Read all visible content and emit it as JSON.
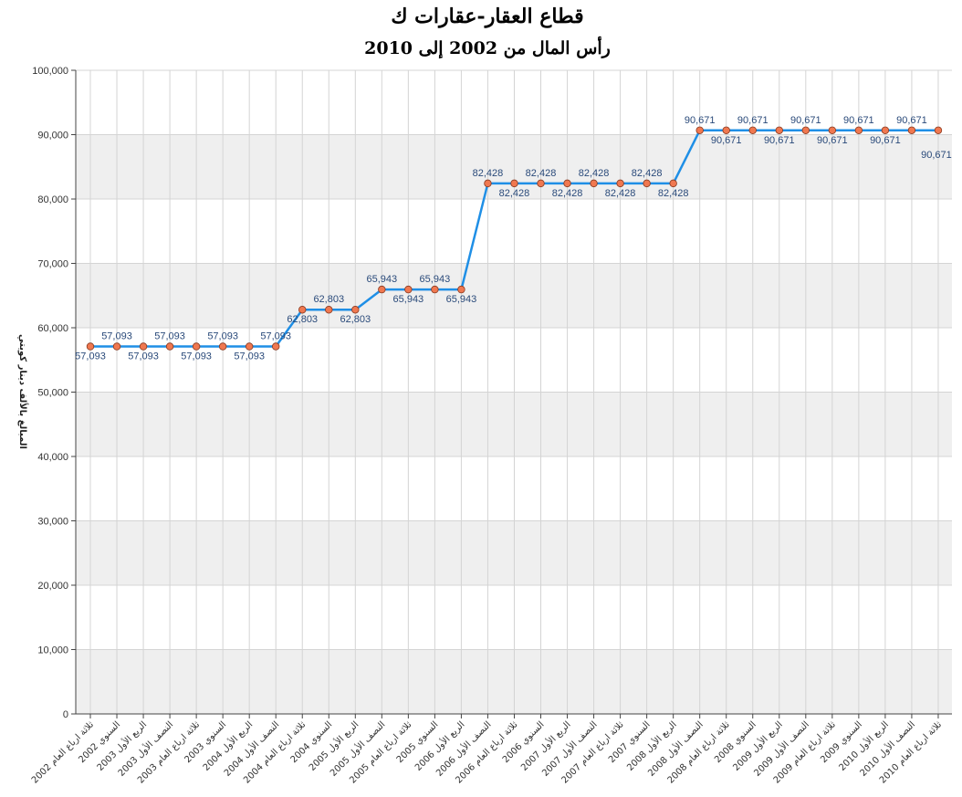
{
  "chart_data": {
    "type": "line",
    "title": "قطاع العقار-عقارات ك",
    "subtitle": "رأس المال من 2002 إلى 2010",
    "xlabel": "",
    "ylabel": "المبالغ بالألف دينار كويتي",
    "ylim": [
      0,
      100000
    ],
    "yticks": [
      "0",
      "10,000",
      "20,000",
      "30,000",
      "40,000",
      "50,000",
      "60,000",
      "70,000",
      "80,000",
      "90,000",
      "100,000"
    ],
    "grid": true,
    "legend": "none",
    "line_color": "#1f8fe6",
    "marker_color": "#f07850",
    "categories": [
      "ثلاثة ارباع العام 2002",
      "السنوي 2002",
      "الربع الأول 2003",
      "النصف الأول 2003",
      "ثلاثة ارباع العام 2003",
      "السنوي 2003",
      "الربع الأول 2004",
      "النصف الأول 2004",
      "ثلاثة ارباع العام 2004",
      "السنوي 2004",
      "الربع الأول 2005",
      "النصف الأول 2005",
      "ثلاثة ارباع العام 2005",
      "السنوي 2005",
      "الربع الأول 2006",
      "النصف الأول 2006",
      "ثلاثة ارباع العام 2006",
      "السنوي 2006",
      "الربع الأول 2007",
      "النصف الأول 2007",
      "ثلاثة ارباع العام 2007",
      "السنوي 2007",
      "الربع الأول 2008",
      "النصف الأول 2008",
      "ثلاثة ارباع العام 2008",
      "السنوي 2008",
      "الربع الأول 2009",
      "النصف الأول 2009",
      "ثلاثة ارباع العام 2009",
      "السنوي 2009",
      "الربع الأول 2010",
      "النصف الأول 2010",
      "ثلاثة ارباع العام 2010"
    ],
    "values": [
      57093,
      57093,
      57093,
      57093,
      57093,
      57093,
      57093,
      57093,
      62803,
      62803,
      62803,
      65943,
      65943,
      65943,
      65943,
      82428,
      82428,
      82428,
      82428,
      82428,
      82428,
      82428,
      82428,
      90671,
      90671,
      90671,
      90671,
      90671,
      90671,
      90671,
      90671,
      90671,
      90671
    ],
    "data_labels": [
      "57,093",
      "57,093",
      "57,093",
      "57,093",
      "57,093",
      "57,093",
      "57,093",
      "57,093",
      "62,803",
      "62,803",
      "62,803",
      "65,943",
      "65,943",
      "65,943",
      "65,943",
      "82,428",
      "82,428",
      "82,428",
      "82,428",
      "82,428",
      "82,428",
      "82,428",
      "82,428",
      "90,671",
      "90,671",
      "90,671",
      "90,671",
      "90,671",
      "90,671",
      "90,671",
      "90,671",
      "90,671",
      "90,671"
    ]
  }
}
